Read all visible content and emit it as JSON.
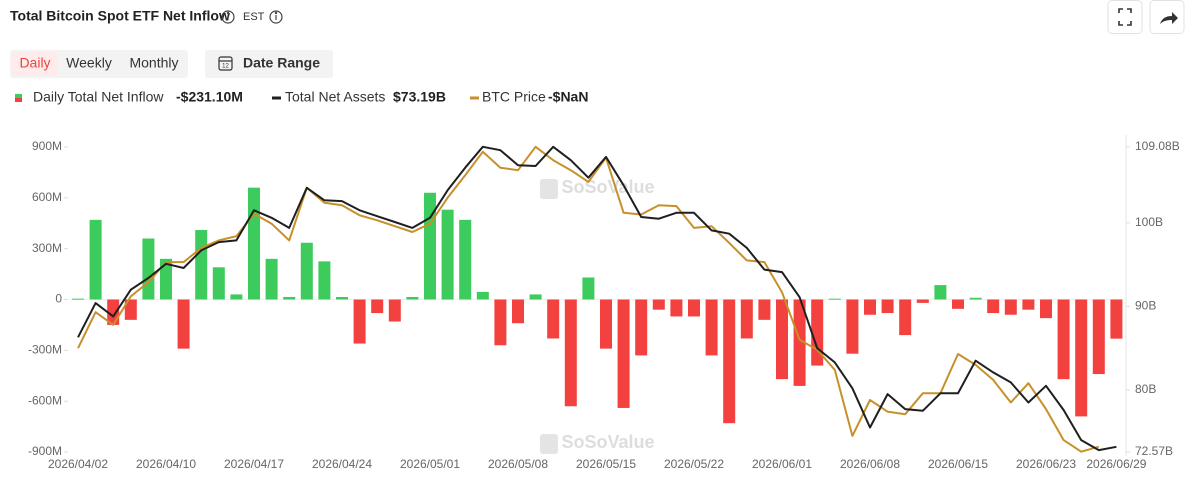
{
  "header": {
    "title": "Total Bitcoin Spot ETF Net Inflow",
    "timezone": "EST",
    "tabs": [
      "Daily",
      "Weekly",
      "Monthly"
    ],
    "active_tab": 0,
    "date_range": "Date Range"
  },
  "chart_data": {
    "type": "bar-line",
    "watermark": "SoSoValue",
    "categories": [
      "2026/04/02",
      null,
      null,
      null,
      null,
      "2026/04/10",
      null,
      null,
      null,
      null,
      "2026/04/17",
      null,
      null,
      null,
      null,
      "2026/04/24",
      null,
      null,
      null,
      null,
      "2026/05/01",
      null,
      null,
      null,
      null,
      "2026/05/08",
      null,
      null,
      null,
      null,
      "2026/05/15",
      null,
      null,
      null,
      null,
      "2026/05/22",
      null,
      null,
      null,
      null,
      "2026/06/01",
      null,
      null,
      null,
      null,
      "2026/06/08",
      null,
      null,
      null,
      null,
      "2026/06/15",
      null,
      null,
      null,
      null,
      "2026/06/23",
      null,
      null,
      null,
      "2026/06/29"
    ],
    "series": [
      {
        "name": "Daily Total Net Inflow",
        "type": "bar",
        "color": "#3ccb5c",
        "negative_color": "#f2413f",
        "legend_value": "-$231.10M",
        "values": [
          5,
          470,
          -150,
          -120,
          360,
          240,
          -290,
          410,
          190,
          30,
          660,
          240,
          15,
          335,
          225,
          15,
          -260,
          -80,
          -130,
          15,
          630,
          530,
          470,
          45,
          -270,
          -140,
          30,
          -230,
          -630,
          130,
          -290,
          -640,
          -330,
          -60,
          -100,
          -100,
          -330,
          -730,
          -230,
          -120,
          -470,
          -510,
          -390,
          5,
          -320,
          -90,
          -80,
          -210,
          -20,
          85,
          -55,
          10,
          -80,
          -90,
          -60,
          -110,
          -470,
          -690,
          -440,
          -231.1
        ]
      },
      {
        "name": "Total Net Assets",
        "type": "line",
        "axis": "y2",
        "color": "#1f1f1f",
        "legend_value": "$73.19B",
        "values": [
          86.3,
          90.4,
          88.8,
          92.0,
          93.4,
          95.1,
          94.6,
          96.7,
          97.7,
          97.9,
          101.5,
          100.6,
          99.4,
          104.2,
          102.7,
          102.6,
          101.5,
          100.8,
          100.1,
          99.4,
          100.6,
          103.9,
          106.6,
          109.1,
          108.7,
          106.9,
          106.8,
          109.1,
          107.5,
          105.4,
          107.9,
          104.5,
          100.7,
          100.5,
          101.2,
          101.2,
          99.1,
          98.7,
          97.0,
          94.4,
          94.1,
          91.1,
          85.0,
          83.3,
          80.2,
          75.5,
          79.5,
          77.7,
          77.5,
          79.6,
          79.6,
          83.5,
          82.1,
          80.9,
          78.5,
          80.5,
          77.6,
          74.0,
          72.8,
          73.19
        ]
      },
      {
        "name": "BTC Price",
        "type": "line",
        "axis": "y2",
        "color": "#c8902a",
        "legend_value": "-$NaN",
        "values": [
          85.0,
          89.3,
          87.8,
          91.2,
          92.9,
          95.3,
          95.3,
          97.0,
          97.9,
          98.4,
          101.1,
          99.9,
          97.9,
          104.2,
          102.4,
          102.1,
          100.9,
          100.3,
          99.6,
          98.9,
          99.9,
          103.0,
          105.7,
          108.5,
          106.6,
          106.3,
          109.1,
          107.5,
          106.3,
          104.9,
          107.8,
          101.2,
          101.0,
          102.1,
          102.0,
          99.4,
          99.6,
          97.6,
          95.5,
          95.3,
          91.7,
          86.0,
          84.8,
          82.4,
          74.5,
          78.8,
          77.4,
          77.1,
          79.6,
          79.6,
          84.3,
          83.0,
          81.2,
          78.5,
          80.8,
          77.7,
          74.0,
          72.6,
          73.2,
          null
        ]
      }
    ],
    "ylim": [
      -900,
      900
    ],
    "yticks": [
      {
        "value": 900,
        "label": "900M"
      },
      {
        "value": 600,
        "label": "600M"
      },
      {
        "value": 300,
        "label": "300M"
      },
      0,
      {
        "value": -300,
        "label": "-300M"
      },
      {
        "value": -600,
        "label": "-600M"
      },
      {
        "value": -900,
        "label": "-900M"
      }
    ],
    "y2lim": [
      72.57,
      109.08
    ],
    "y2ticks": [
      {
        "value": 109.08,
        "label": "109.08B"
      },
      {
        "value": 100,
        "label": "100B"
      },
      {
        "value": 90,
        "label": "90B"
      },
      {
        "value": 80,
        "label": "80B"
      },
      {
        "value": 72.57,
        "label": "72.57B"
      }
    ],
    "grid": false
  }
}
